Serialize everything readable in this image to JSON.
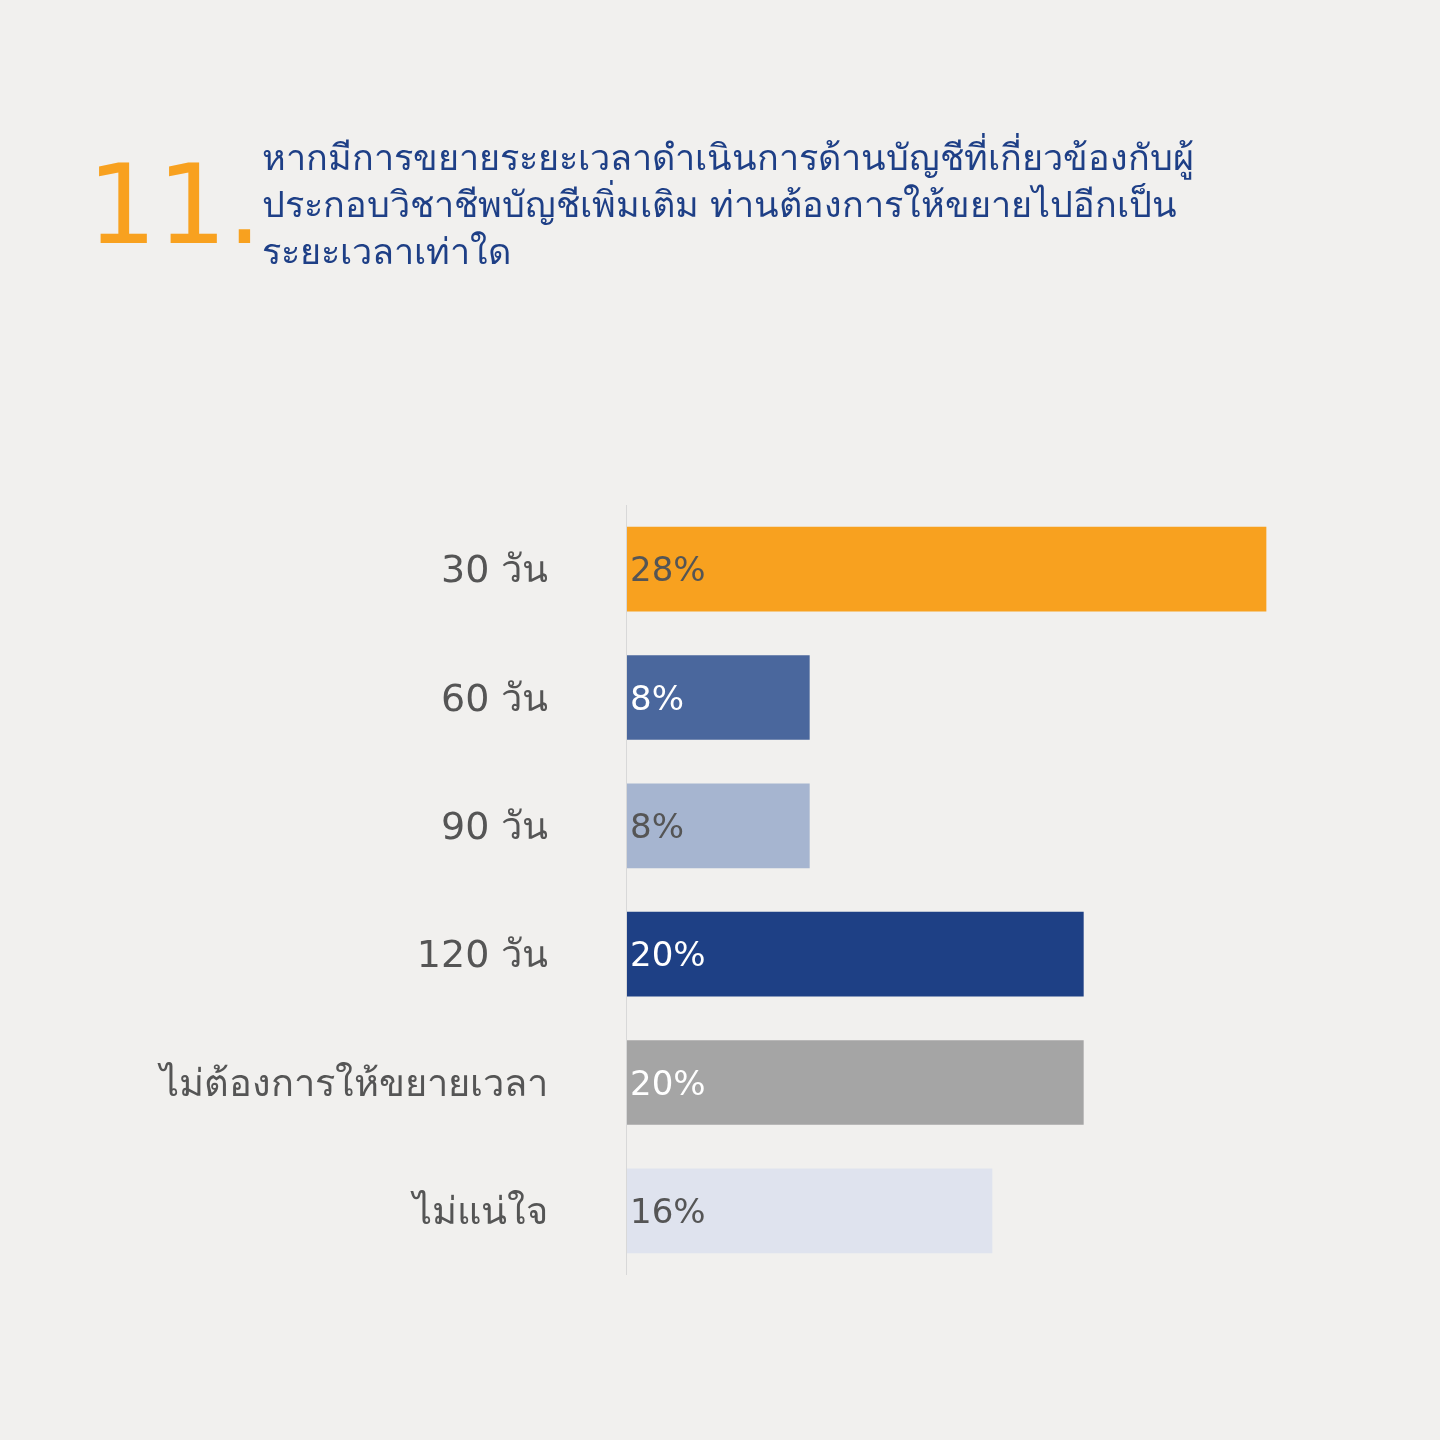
{
  "chart_data": {
    "type": "bar",
    "orientation": "horizontal",
    "title": "หากมีการขยายระยะเวลาดำเนินการด้านบัญชีที่เกี่ยวข้องกับผู้\nประกอบวิชาชีพบัญชีเพิ่มเติม ท่านต้องการให้ขยายไปอีกเป็น\nระยะเวลาเท่าใด",
    "annotations": [
      "11."
    ],
    "categories": [
      "30 วัน",
      "60 วัน",
      "90 วัน",
      "120 วัน",
      "ไม่ต้องการให้ขยายเวลา",
      "ไม่แน่ใจ"
    ],
    "values": [
      28,
      8,
      8,
      20,
      20,
      16
    ],
    "value_labels": [
      "28%",
      "8%",
      "8%",
      "20%",
      "20%",
      "16%"
    ],
    "colors": [
      "#f8a11f",
      "#4a679d",
      "#a6b5d0",
      "#1e4085",
      "#a5a5a5",
      "#dfe3ee"
    ],
    "grid": false,
    "legend": false,
    "tick_labels": "y"
  }
}
